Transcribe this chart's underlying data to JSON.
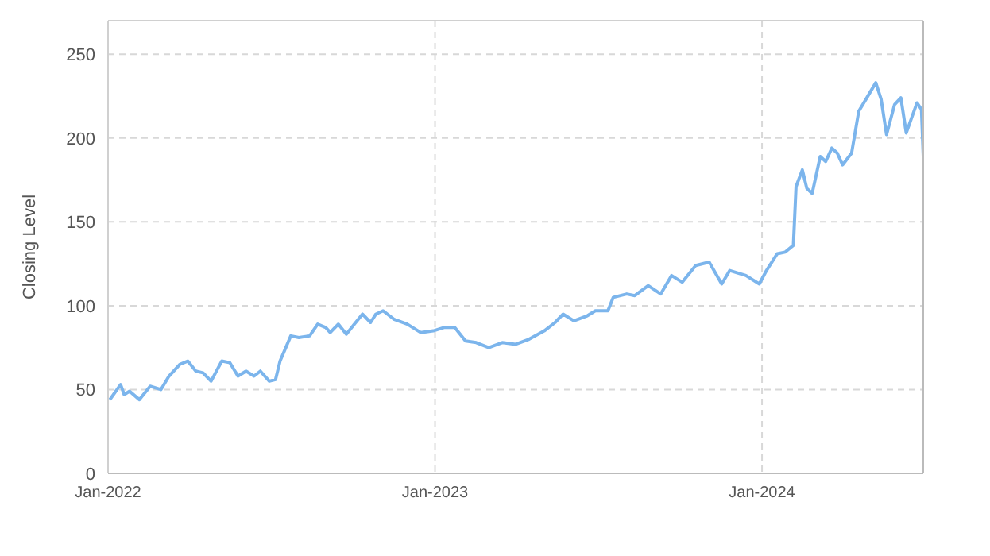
{
  "chart_data": {
    "type": "line",
    "ylabel": "Closing Level",
    "x": [
      "2022-01-03",
      "2022-01-07",
      "2022-01-15",
      "2022-01-19",
      "2022-01-25",
      "2022-02-05",
      "2022-02-17",
      "2022-03-01",
      "2022-03-10",
      "2022-03-22",
      "2022-03-31",
      "2022-04-09",
      "2022-04-17",
      "2022-04-26",
      "2022-05-08",
      "2022-05-17",
      "2022-05-26",
      "2022-06-04",
      "2022-06-13",
      "2022-06-20",
      "2022-06-30",
      "2022-07-07",
      "2022-07-12",
      "2022-07-24",
      "2022-08-02",
      "2022-08-14",
      "2022-08-23",
      "2022-09-01",
      "2022-09-06",
      "2022-09-15",
      "2022-09-24",
      "2022-10-03",
      "2022-10-12",
      "2022-10-21",
      "2022-10-27",
      "2022-11-04",
      "2022-11-16",
      "2022-12-01",
      "2022-12-16",
      "2022-12-30",
      "2023-01-11",
      "2023-01-23",
      "2023-02-04",
      "2023-02-16",
      "2023-03-02",
      "2023-03-17",
      "2023-04-01",
      "2023-04-16",
      "2023-05-03",
      "2023-05-15",
      "2023-05-24",
      "2023-06-05",
      "2023-06-20",
      "2023-06-29",
      "2023-07-13",
      "2023-07-19",
      "2023-08-03",
      "2023-08-12",
      "2023-08-27",
      "2023-09-10",
      "2023-09-22",
      "2023-10-04",
      "2023-10-19",
      "2023-11-03",
      "2023-11-17",
      "2023-11-26",
      "2023-12-14",
      "2023-12-29",
      "2024-01-06",
      "2024-01-18",
      "2024-01-27",
      "2024-02-05",
      "2024-02-08",
      "2024-02-15",
      "2024-02-20",
      "2024-02-26",
      "2024-03-06",
      "2024-03-12",
      "2024-03-19",
      "2024-03-25",
      "2024-03-31",
      "2024-04-10",
      "2024-04-18",
      "2024-04-27",
      "2024-05-07",
      "2024-05-13",
      "2024-05-19",
      "2024-05-28",
      "2024-06-04",
      "2024-06-10",
      "2024-06-22",
      "2024-06-27",
      "2024-06-29"
    ],
    "series": [
      {
        "color": "#7cb5ec",
        "values": [
          44,
          47,
          53,
          47,
          49,
          44,
          52,
          50,
          58,
          65,
          67,
          61,
          60,
          55,
          67,
          66,
          58,
          61,
          58,
          61,
          55,
          56,
          67,
          82,
          81,
          82,
          89,
          87,
          84,
          89,
          83,
          89,
          95,
          90,
          95,
          97,
          92,
          89,
          84,
          85,
          87,
          87,
          79,
          78,
          75,
          78,
          77,
          80,
          85,
          90,
          95,
          91,
          94,
          97,
          97,
          105,
          107,
          106,
          112,
          107,
          118,
          114,
          124,
          126,
          113,
          121,
          118,
          113,
          121,
          131,
          132,
          136,
          171,
          181,
          170,
          167,
          189,
          186,
          194,
          191,
          184,
          191,
          216,
          224,
          233,
          223,
          202,
          220,
          224,
          203,
          221,
          217,
          189
        ]
      }
    ],
    "xlim": [
      "2022-01-01",
      "2024-06-29"
    ],
    "xticks": [
      {
        "value": "2022-01-01",
        "label": "Jan-2022"
      },
      {
        "value": "2023-01-01",
        "label": "Jan-2023"
      },
      {
        "value": "2024-01-01",
        "label": "Jan-2024"
      }
    ],
    "ylim": [
      0,
      270
    ],
    "yticks": [
      0,
      50,
      100,
      150,
      200,
      250
    ],
    "grid": true,
    "legend": false,
    "marker": "none",
    "line_style": "solid"
  }
}
